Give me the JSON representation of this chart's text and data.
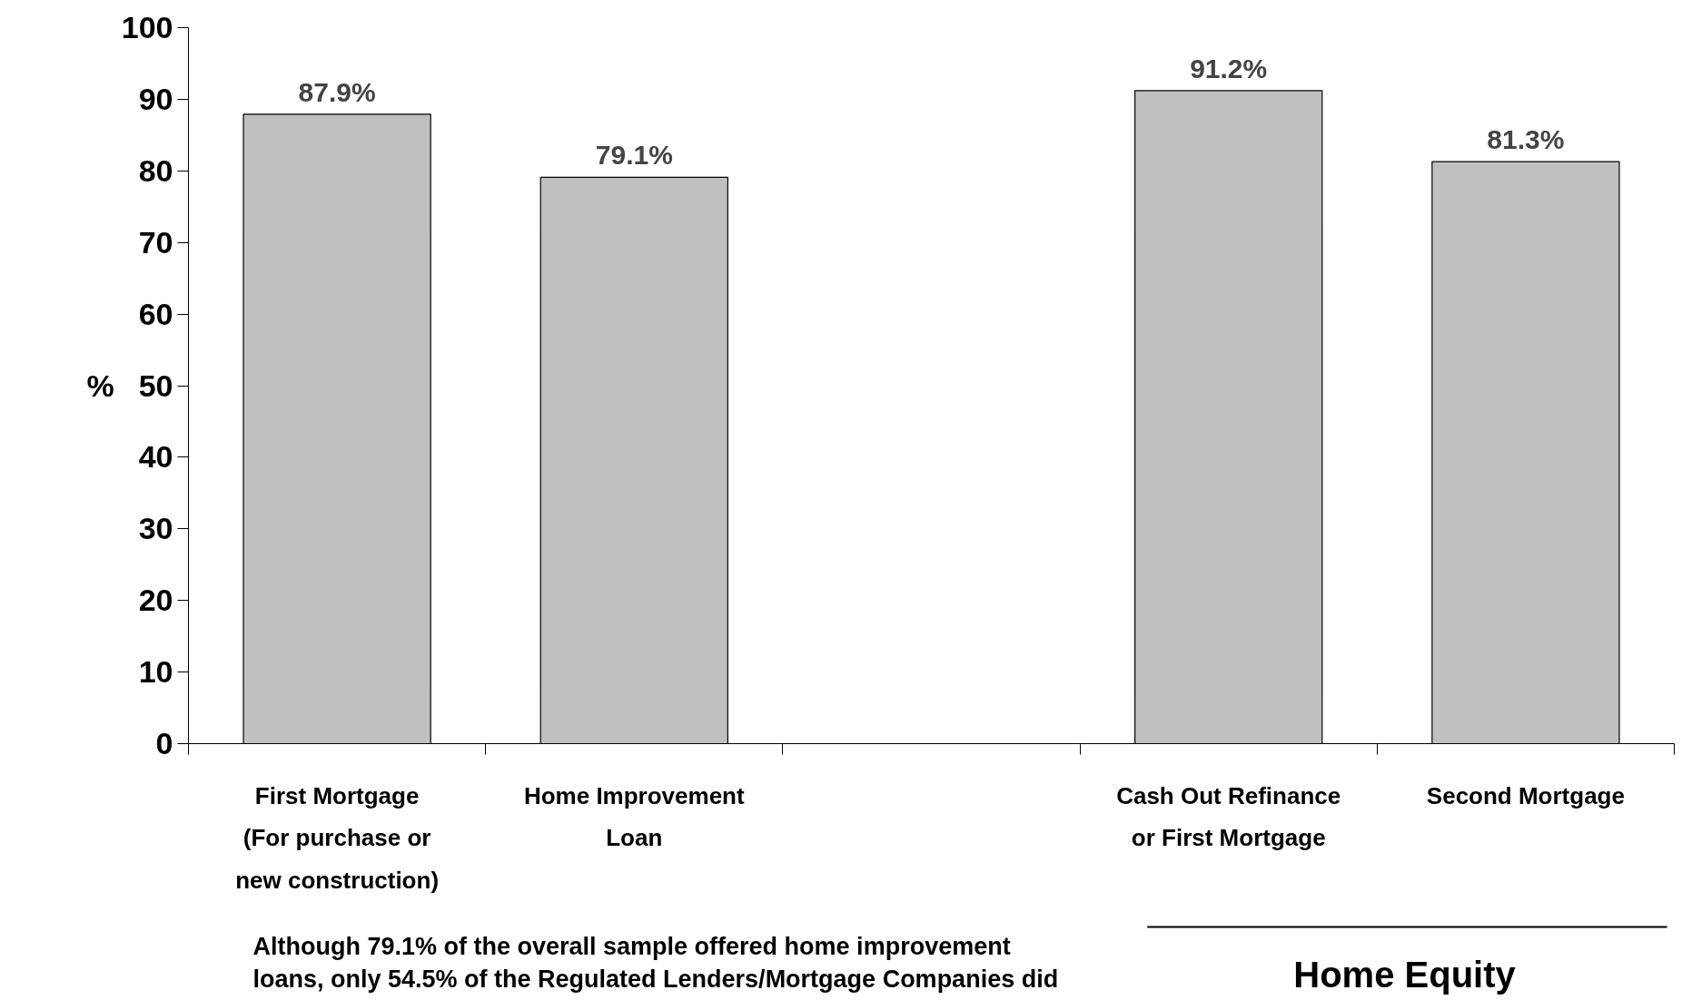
{
  "chart_data": {
    "type": "bar",
    "ylabel": "%",
    "categories": [
      "First Mortgage (For purchase or new construction)",
      "Home Improvement Loan",
      null,
      "Cash Out Refinance or First Mortgage",
      "Second Mortgage"
    ],
    "values": [
      87.9,
      79.1,
      null,
      91.2,
      81.3
    ],
    "value_labels": [
      "87.9%",
      "79.1%",
      null,
      "91.2%",
      "81.3%"
    ],
    "color": "#c0c0c0",
    "ylim": [
      0,
      100
    ],
    "yticks": [
      0,
      10,
      20,
      30,
      40,
      50,
      60,
      70,
      80,
      90,
      100
    ],
    "grid": false,
    "annotations": [
      "Home Equity",
      "Although 79.1% of the overall sample offered home improvement loans, only 54.5% of the Regulated Lenders/Mortgage Companies did"
    ]
  }
}
